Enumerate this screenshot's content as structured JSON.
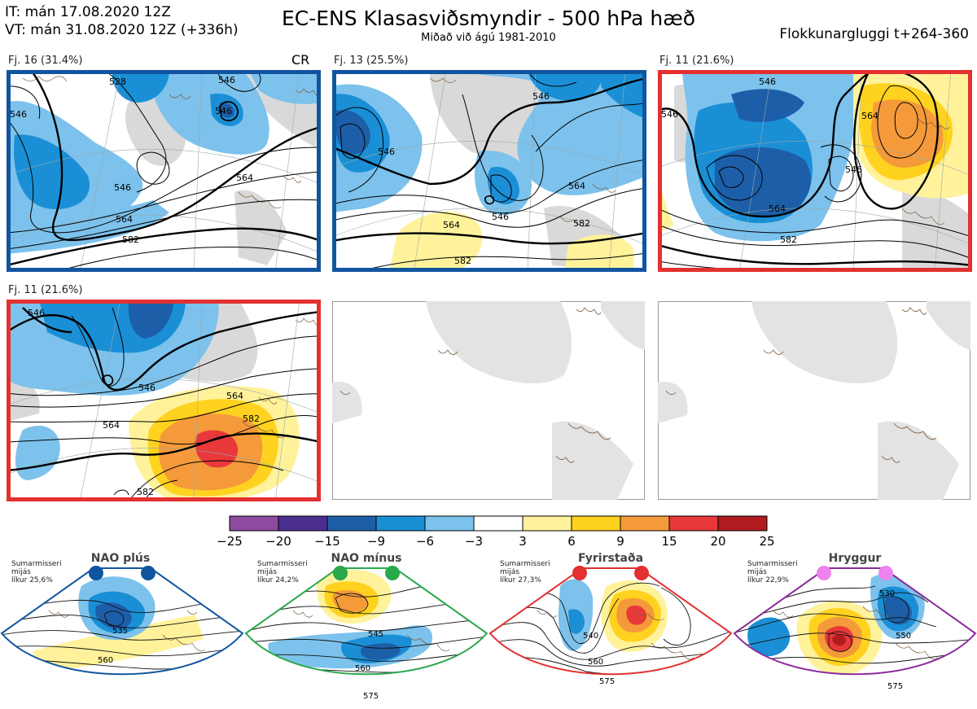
{
  "header": {
    "it_line": "IT: mán 17.08.2020 12Z",
    "vt_line": "VT: mán 31.08.2020 12Z  (+336h)",
    "title": "EC-ENS Klasasviðsmyndir - 500 hPa hæð",
    "subtitle": "Miðað við ágú 1981-2010",
    "window": "Flokkunargluggi t+264-360"
  },
  "panels": [
    {
      "label": "Fj. 16 (31.4%)",
      "tag": "CR",
      "border": "#1155a0",
      "contours": [
        "528",
        "546",
        "546",
        "546",
        "546",
        "564",
        "564",
        "582"
      ]
    },
    {
      "label": "Fj. 13 (25.5%)",
      "tag": "",
      "border": "#1155a0",
      "contours": [
        "546",
        "546",
        "564",
        "546",
        "564",
        "582",
        "582"
      ]
    },
    {
      "label": "Fj. 11 (21.6%)",
      "tag": "",
      "border": "#e33030",
      "contours": [
        "546",
        "546",
        "564",
        "564",
        "546",
        "582"
      ]
    },
    {
      "label": "Fj. 11 (21.6%)",
      "tag": "",
      "border": "#e33030",
      "contours": [
        "546",
        "546",
        "564",
        "564",
        "582",
        "582"
      ]
    },
    {
      "label": "",
      "tag": "",
      "border": "",
      "contours": []
    },
    {
      "label": "",
      "tag": "",
      "border": "",
      "contours": []
    }
  ],
  "colorbar": {
    "colors": [
      "#8e4a9e",
      "#4b2f8f",
      "#1d5ea8",
      "#1a8fd6",
      "#7cc2ec",
      "#ffffff",
      "#fff29a",
      "#ffd21f",
      "#f59a3a",
      "#e8383a",
      "#b01b20"
    ],
    "ticks": [
      "−25",
      "−20",
      "−15",
      "−9",
      "−6",
      "−3",
      "3",
      "6",
      "9",
      "15",
      "20",
      "25"
    ]
  },
  "regimes": [
    {
      "name": "NAO plús",
      "note": [
        "Sumarmisseri",
        "mijás",
        "líkur 25,6%"
      ],
      "color": "#1155a0",
      "dot": "#1155a0",
      "contours": [
        "535",
        "560"
      ]
    },
    {
      "name": "NAO mínus",
      "note": [
        "Sumarmisseri",
        "mijás",
        "líkur 24,2%"
      ],
      "color": "#2aa84a",
      "dot": "#2aa84a",
      "contours": [
        "545",
        "560",
        "575"
      ]
    },
    {
      "name": "Fyrirstaða",
      "note": [
        "Sumarmisseri",
        "mijás",
        "líkur 27,3%"
      ],
      "color": "#e33030",
      "dot": "#e33030",
      "contours": [
        "540",
        "560",
        "575"
      ]
    },
    {
      "name": "Hryggur",
      "note": [
        "Sumarmisseri",
        "mijás",
        "líkur 22,9%"
      ],
      "color": "#8a2a9a",
      "dot": "#ee82ee",
      "contours": [
        "530",
        "550",
        "575"
      ]
    }
  ]
}
